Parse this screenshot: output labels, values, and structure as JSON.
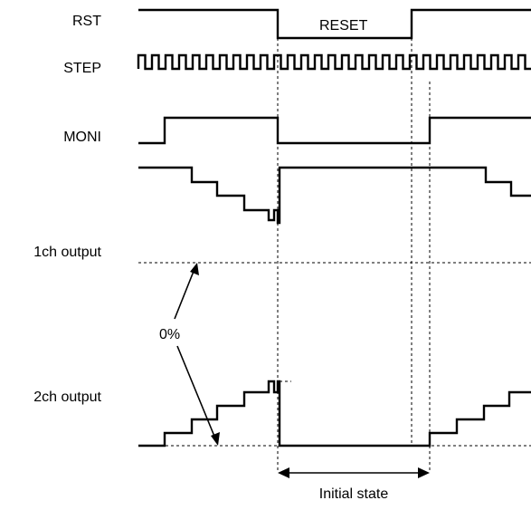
{
  "signals": {
    "rst": "RST",
    "step": "STEP",
    "moni": "MONI",
    "ch1": "1ch output",
    "ch2": "2ch output"
  },
  "annotations": {
    "reset": "RESET",
    "zero_percent": "0%",
    "initial_state": "Initial state"
  }
}
